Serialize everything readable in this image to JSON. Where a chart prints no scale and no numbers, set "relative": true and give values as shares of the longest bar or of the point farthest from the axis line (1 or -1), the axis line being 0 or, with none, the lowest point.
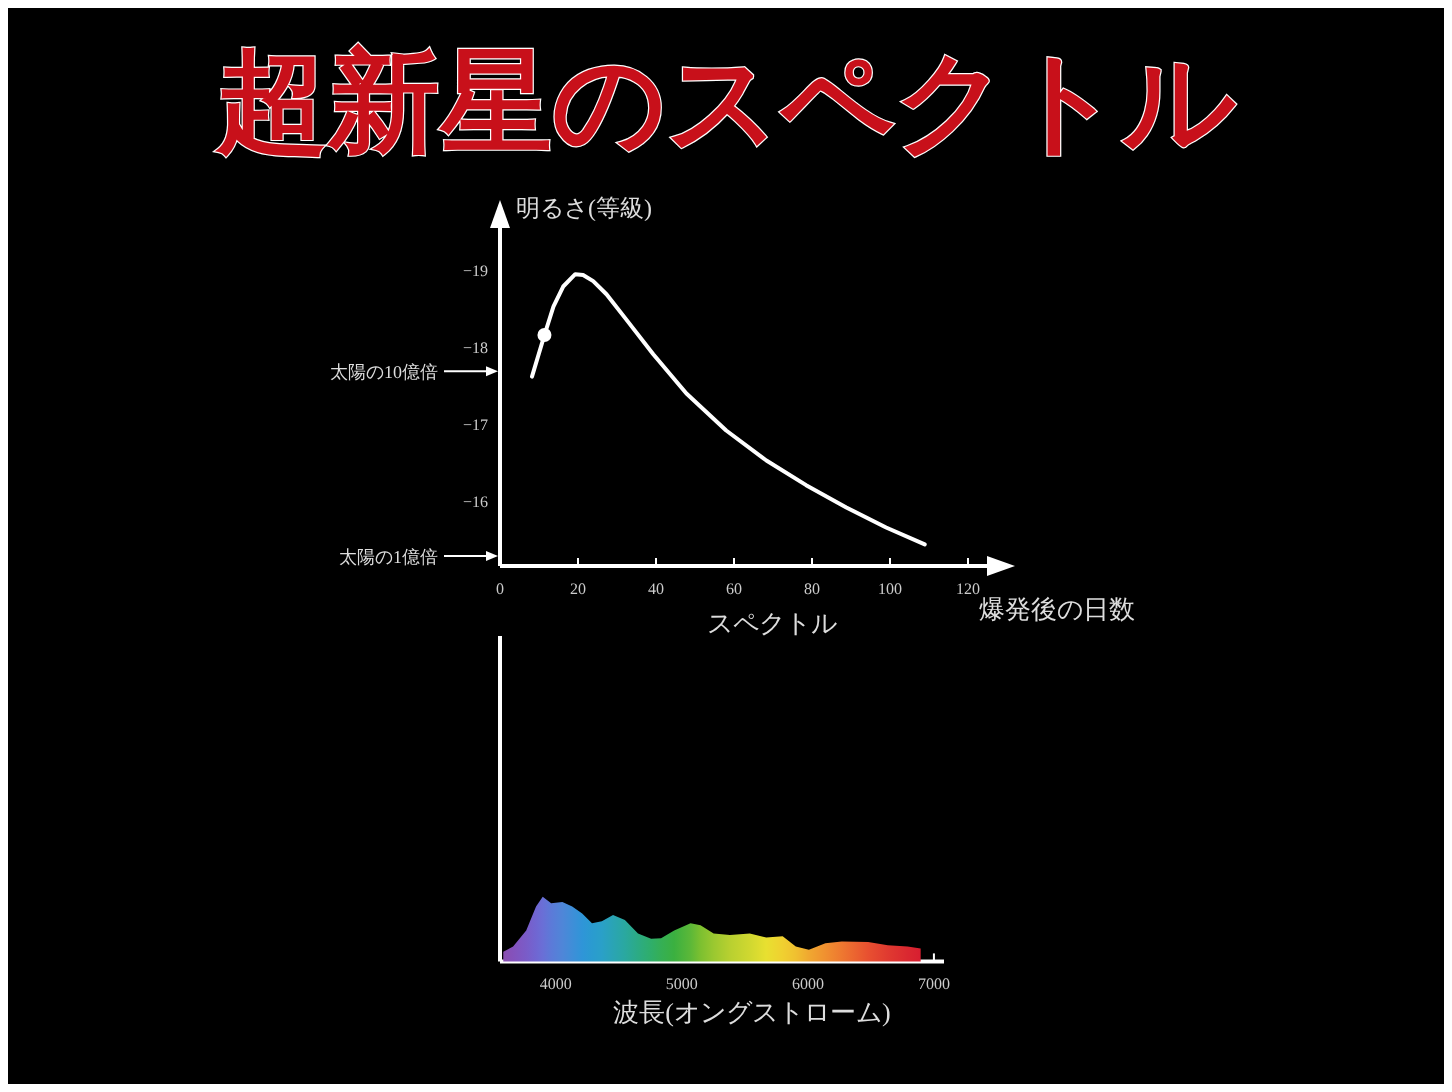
{
  "chart_data": [
    {
      "type": "line",
      "title": "超新星のスペクトル",
      "ylabel": "明るさ(等級)",
      "xlabel": "爆発後の日数",
      "xlim": [
        0,
        130
      ],
      "ylim": [
        -15.15,
        -19.8
      ],
      "xticks": [
        0,
        20,
        40,
        60,
        80,
        100,
        120
      ],
      "yticks": [
        -16,
        -17,
        -18,
        -19
      ],
      "series": [
        {
          "color": "#ffffff",
          "x": [
            8.2,
            11.4,
            13.7,
            16.2,
            19.3,
            21.3,
            23.9,
            27.3,
            32.4,
            39.3,
            47.8,
            58.0,
            68.3,
            78.5,
            88.8,
            99.0,
            108.9
          ],
          "values": [
            -17.61,
            -18.15,
            -18.52,
            -18.78,
            -18.94,
            -18.93,
            -18.85,
            -18.68,
            -18.35,
            -17.9,
            -17.39,
            -16.91,
            -16.52,
            -16.2,
            -15.91,
            -15.65,
            -15.43
          ]
        },
        {
          "type": "scatter",
          "color": "#ffffff",
          "marker": "circle",
          "x": [
            11.4
          ],
          "values": [
            -18.15
          ]
        }
      ],
      "ref_lines": [
        {
          "axis": "y",
          "value": -17.68,
          "label": "太陽の10億倍",
          "color": "#ffffff"
        },
        {
          "axis": "y",
          "value": -15.28,
          "label": "太陽の1億倍",
          "color": "#ffffff"
        }
      ]
    },
    {
      "type": "area",
      "title": "スペクトル",
      "xlabel": "波長(オングストローム)",
      "relative": true,
      "xlim": [
        3557,
        7080
      ],
      "xticks": [
        4000,
        5000,
        6000,
        7000
      ],
      "series": [
        {
          "x": [
            3583,
            3661,
            3765,
            3843,
            3896,
            3963,
            4052,
            4130,
            4209,
            4287,
            4365,
            4454,
            4548,
            4652,
            4756,
            4835,
            4939,
            5069,
            5148,
            5252,
            5382,
            5539,
            5669,
            5800,
            5904,
            6008,
            6139,
            6269,
            6478,
            6634,
            6791,
            6895
          ],
          "values": [
            0.15,
            0.23,
            0.48,
            0.85,
            1.0,
            0.9,
            0.92,
            0.85,
            0.74,
            0.59,
            0.62,
            0.72,
            0.64,
            0.43,
            0.35,
            0.36,
            0.48,
            0.59,
            0.56,
            0.43,
            0.41,
            0.43,
            0.37,
            0.39,
            0.23,
            0.18,
            0.28,
            0.31,
            0.3,
            0.25,
            0.23,
            0.2
          ],
          "colors": [
            "#8a4fb0",
            "#8452bc",
            "#7a5cc8",
            "#7066d2",
            "#6a6fd6",
            "#5c7ad8",
            "#4f86d8",
            "#3f8ed8",
            "#2f95d8",
            "#2a9bd0",
            "#2aa0c8",
            "#2aa4b4",
            "#2aa8a0",
            "#2cab84",
            "#2fae6a",
            "#35af55",
            "#3bb040",
            "#5cb838",
            "#7cc030",
            "#9ac830",
            "#b8d030",
            "#d0d830",
            "#e8e030",
            "#f0d030",
            "#f0c030",
            "#f0a830",
            "#f09030",
            "#ee7830",
            "#e85030",
            "#e03a30",
            "#da2830",
            "#d81e30"
          ]
        }
      ]
    }
  ]
}
